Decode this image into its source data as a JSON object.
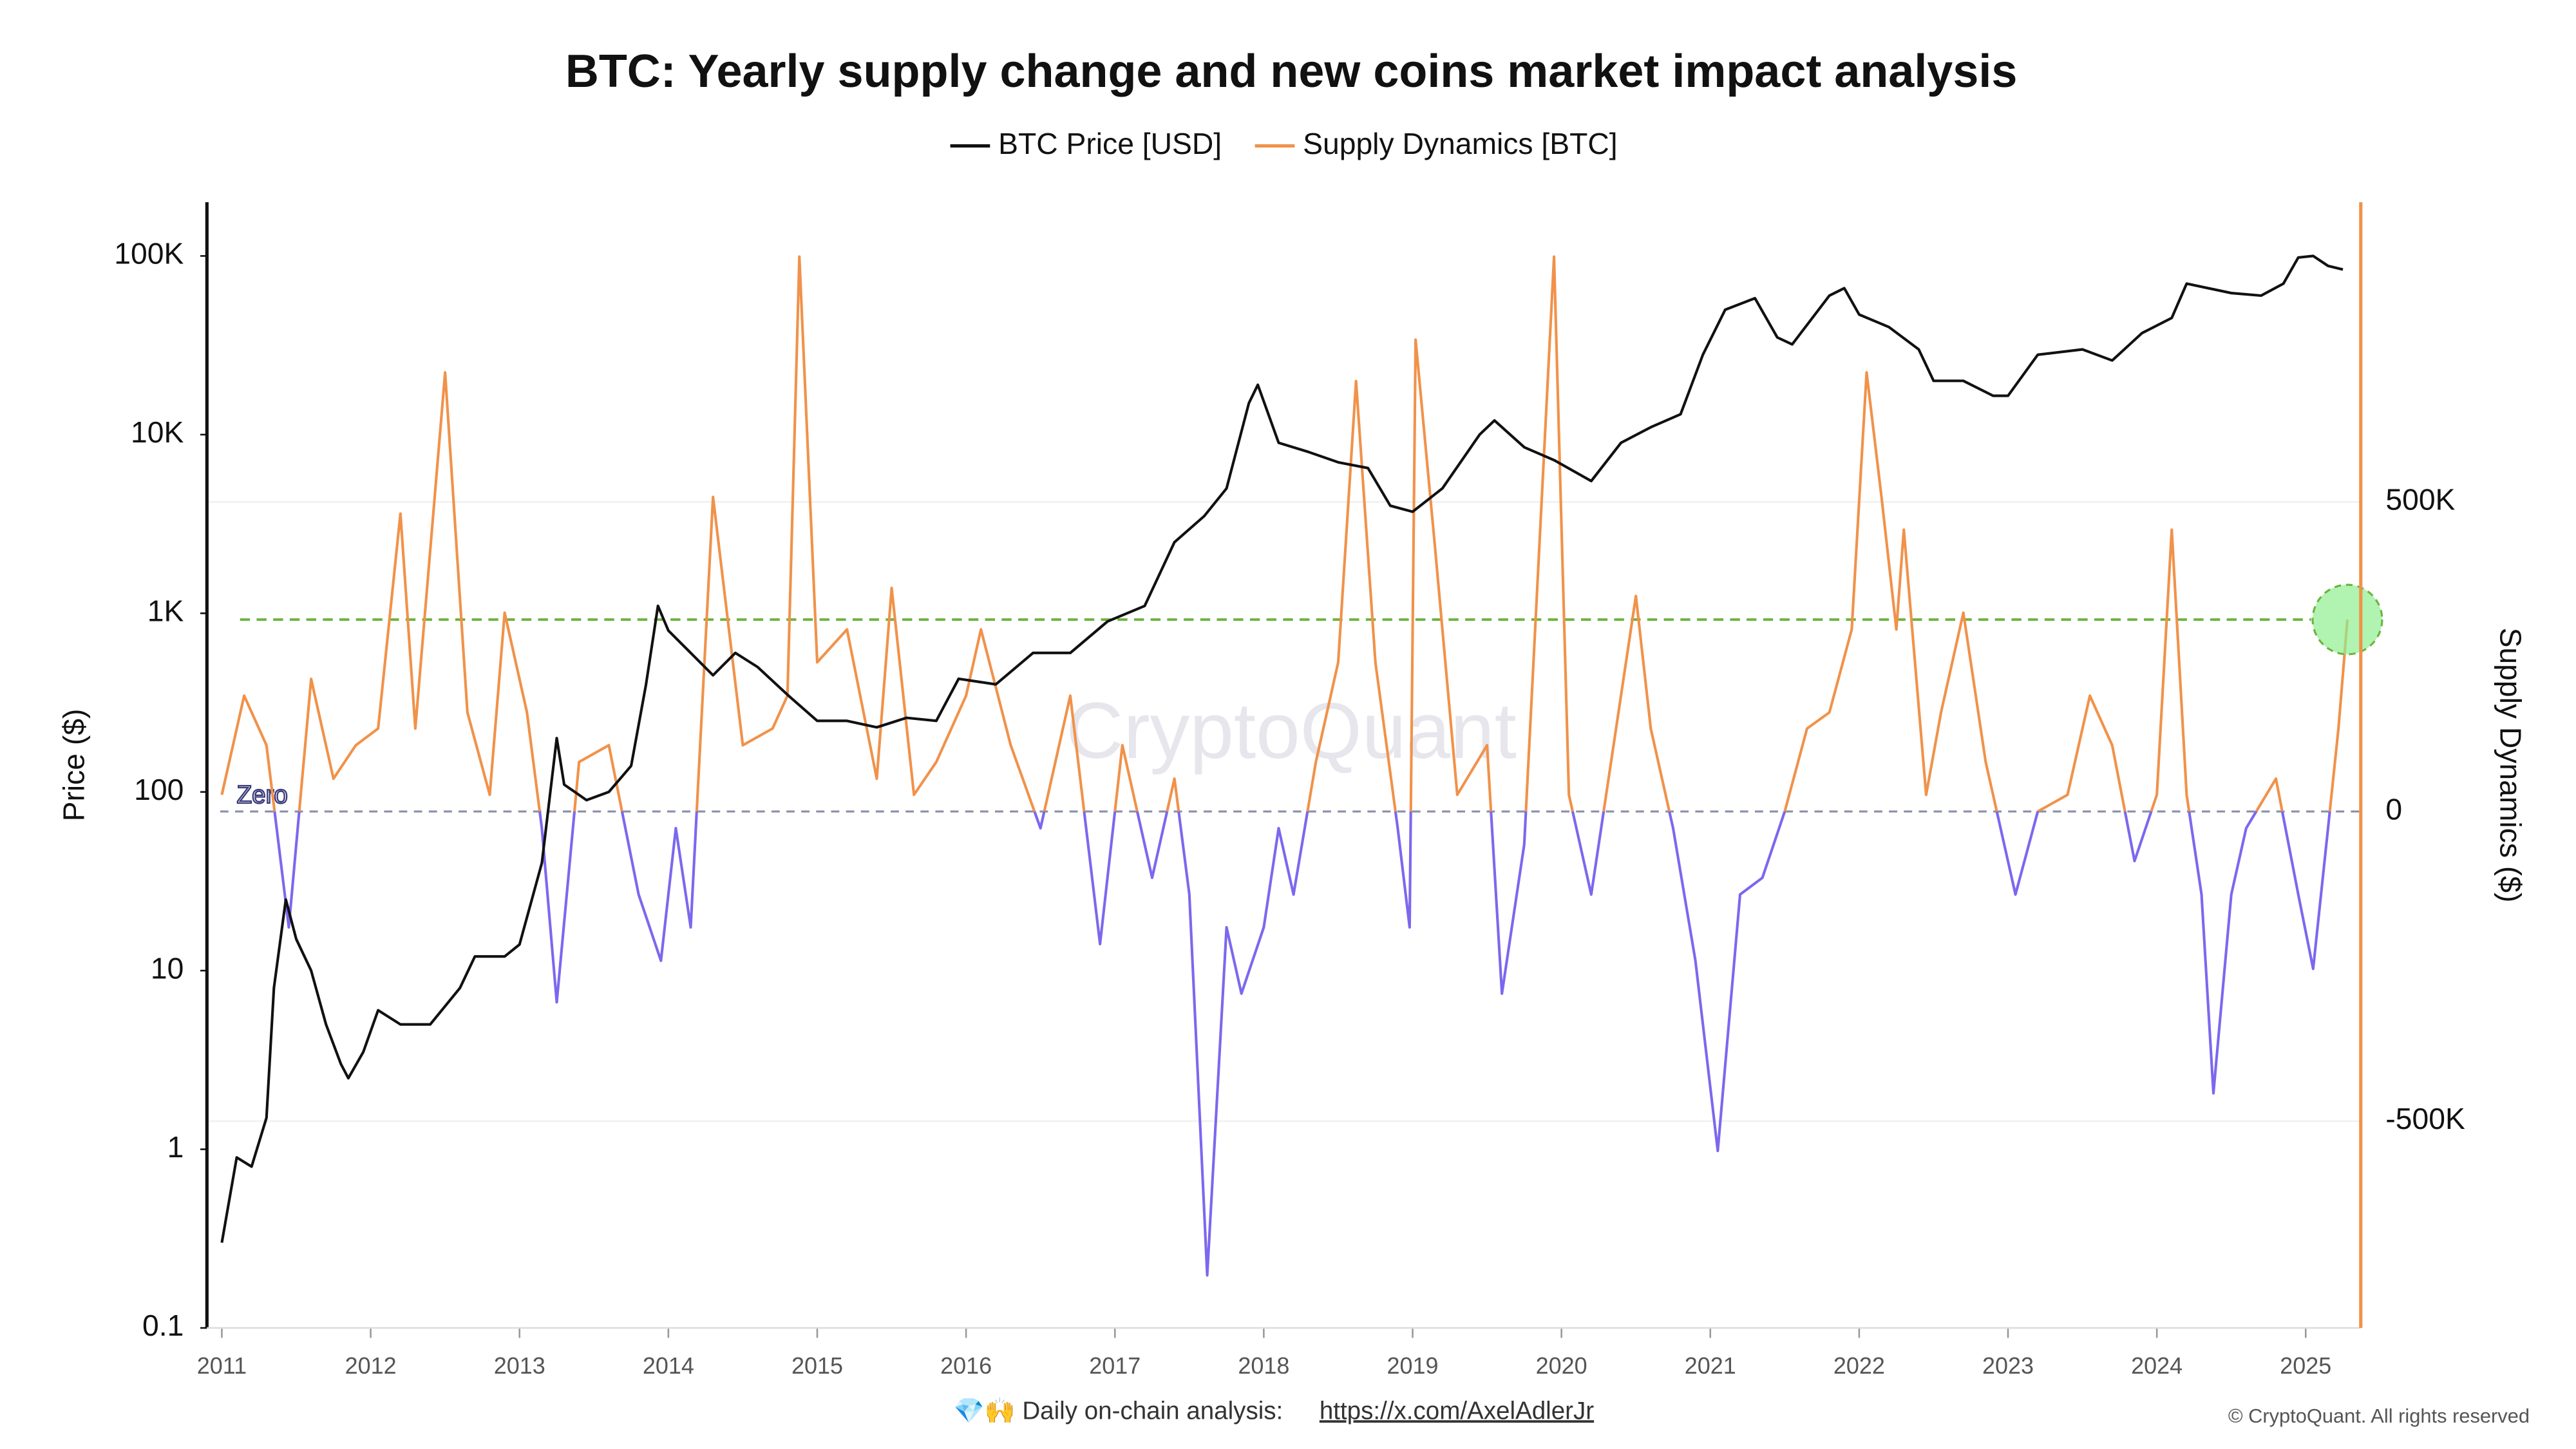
{
  "chart_data": {
    "type": "line",
    "title": "BTC: Yearly supply change and new coins market impact analysis",
    "y_label": "Price ($)",
    "y2_label": "Supply Dynamics ($)",
    "watermark": "CryptoQuant",
    "footer_text": "💎🙌 Daily on-chain analysis:",
    "footer_link": "https://x.com/AxelAdlerJr",
    "copyright": "© CryptoQuant. All rights reserved",
    "xlim": [
      2010.9,
      2025.37
    ],
    "xticks": [
      2011,
      2012,
      2013,
      2014,
      2015,
      2016,
      2017,
      2018,
      2019,
      2020,
      2021,
      2022,
      2023,
      2024,
      2025
    ],
    "y_scale": "log",
    "ylim": [
      0.1,
      200000
    ],
    "yticks": [
      0.1,
      1,
      10,
      100,
      {
        "value": 1000,
        "label": "1K"
      },
      {
        "value": 10000,
        "label": "10K"
      },
      {
        "value": 100000,
        "label": "100K"
      }
    ],
    "y2lim": [
      -834000,
      984000
    ],
    "y2ticks": [
      {
        "value": -500000,
        "label": "-500K"
      },
      0,
      {
        "value": 500000,
        "label": "500K"
      }
    ],
    "grid": true,
    "zero_line": {
      "label": "Zero",
      "value": 0,
      "color": "#8a8fa8"
    },
    "threshold": {
      "value": 310000,
      "color": "#6ab43e"
    },
    "highlight_color": "#90ee90",
    "series": [
      {
        "name": "BTC Price [USD]",
        "color": "#111111",
        "axis": "y",
        "x": [
          2011.0,
          2011.1,
          2011.2,
          2011.3,
          2011.35,
          2011.43,
          2011.5,
          2011.6,
          2011.7,
          2011.8,
          2011.85,
          2011.95,
          2012.05,
          2012.2,
          2012.4,
          2012.6,
          2012.7,
          2012.9,
          2013.0,
          2013.15,
          2013.25,
          2013.3,
          2013.45,
          2013.6,
          2013.75,
          2013.85,
          2013.93,
          2014.0,
          2014.15,
          2014.3,
          2014.45,
          2014.6,
          2014.8,
          2015.0,
          2015.2,
          2015.4,
          2015.6,
          2015.8,
          2015.95,
          2016.2,
          2016.45,
          2016.7,
          2016.95,
          2017.2,
          2017.4,
          2017.6,
          2017.75,
          2017.9,
          2017.96,
          2018.1,
          2018.3,
          2018.5,
          2018.7,
          2018.85,
          2019.0,
          2019.2,
          2019.45,
          2019.55,
          2019.75,
          2019.95,
          2020.2,
          2020.4,
          2020.6,
          2020.8,
          2020.95,
          2021.1,
          2021.3,
          2021.45,
          2021.55,
          2021.8,
          2021.9,
          2022.0,
          2022.2,
          2022.4,
          2022.5,
          2022.7,
          2022.9,
          2023.0,
          2023.2,
          2023.5,
          2023.7,
          2023.9,
          2024.1,
          2024.2,
          2024.5,
          2024.7,
          2024.85,
          2024.95,
          2025.05,
          2025.15,
          2025.25
        ],
        "values": [
          0.3,
          0.9,
          0.8,
          1.5,
          8,
          25,
          15,
          10,
          5,
          3,
          2.5,
          3.5,
          6,
          5,
          5,
          8,
          12,
          12,
          14,
          40,
          200,
          110,
          90,
          100,
          140,
          400,
          1100,
          800,
          600,
          450,
          600,
          500,
          350,
          250,
          250,
          230,
          260,
          250,
          430,
          400,
          600,
          600,
          900,
          1100,
          2500,
          3500,
          5000,
          15000,
          19000,
          9000,
          8000,
          7000,
          6500,
          4000,
          3700,
          5000,
          10000,
          12000,
          8500,
          7200,
          5500,
          9000,
          11000,
          13000,
          28000,
          50000,
          58000,
          35000,
          32000,
          60000,
          66000,
          47000,
          40000,
          30000,
          20000,
          20000,
          16500,
          16500,
          28000,
          30000,
          26000,
          37000,
          45000,
          70000,
          62000,
          60000,
          70000,
          98000,
          100000,
          88000,
          84000
        ]
      },
      {
        "name": "Supply Dynamics [BTC]",
        "color": "#f0924a",
        "negative_color": "#7b68ee",
        "axis": "y2",
        "x": [
          2011.0,
          2011.15,
          2011.3,
          2011.45,
          2011.6,
          2011.75,
          2011.9,
          2012.05,
          2012.2,
          2012.3,
          2012.5,
          2012.65,
          2012.8,
          2012.9,
          2013.05,
          2013.15,
          2013.25,
          2013.4,
          2013.6,
          2013.8,
          2013.95,
          2014.05,
          2014.15,
          2014.3,
          2014.5,
          2014.7,
          2014.8,
          2014.88,
          2015.0,
          2015.2,
          2015.4,
          2015.5,
          2015.65,
          2015.8,
          2016.0,
          2016.1,
          2016.3,
          2016.5,
          2016.7,
          2016.9,
          2017.05,
          2017.25,
          2017.4,
          2017.5,
          2017.62,
          2017.75,
          2017.85,
          2018.0,
          2018.1,
          2018.2,
          2018.35,
          2018.5,
          2018.62,
          2018.75,
          2018.9,
          2018.98,
          2019.02,
          2019.15,
          2019.3,
          2019.5,
          2019.6,
          2019.75,
          2019.95,
          2020.05,
          2020.2,
          2020.35,
          2020.5,
          2020.6,
          2020.75,
          2020.9,
          2021.05,
          2021.2,
          2021.35,
          2021.5,
          2021.65,
          2021.8,
          2021.95,
          2022.05,
          2022.15,
          2022.25,
          2022.3,
          2022.45,
          2022.55,
          2022.7,
          2022.85,
          2022.95,
          2023.05,
          2023.2,
          2023.4,
          2023.55,
          2023.7,
          2023.85,
          2024.0,
          2024.1,
          2024.2,
          2024.3,
          2024.38,
          2024.5,
          2024.6,
          2024.8,
          2024.95,
          2025.05,
          2025.15,
          2025.22,
          2025.28
        ],
        "values": [
          27000,
          187000,
          107000,
          -187000,
          214000,
          53000,
          107000,
          134000,
          481000,
          134000,
          709000,
          160000,
          27000,
          321000,
          160000,
          -27000,
          -308000,
          80000,
          107000,
          -134000,
          -241000,
          -27000,
          -187000,
          508000,
          107000,
          134000,
          187000,
          896000,
          241000,
          294000,
          53000,
          361000,
          27000,
          80000,
          187000,
          294000,
          107000,
          -27000,
          187000,
          -214000,
          107000,
          -107000,
          53000,
          -134000,
          -749000,
          -187000,
          -294000,
          -187000,
          -27000,
          -134000,
          80000,
          241000,
          695000,
          241000,
          -27000,
          -187000,
          762000,
          428000,
          27000,
          107000,
          -294000,
          -53000,
          896000,
          27000,
          -134000,
          107000,
          348000,
          134000,
          -27000,
          -241000,
          -548000,
          -134000,
          -107000,
          0,
          134000,
          160000,
          294000,
          709000,
          508000,
          294000,
          455000,
          27000,
          160000,
          321000,
          80000,
          -27000,
          -134000,
          0,
          27000,
          187000,
          107000,
          -80000,
          27000,
          455000,
          27000,
          -134000,
          -455000,
          -134000,
          -27000,
          53000,
          -134000,
          -254000,
          -27000,
          134000,
          310000
        ]
      }
    ]
  }
}
